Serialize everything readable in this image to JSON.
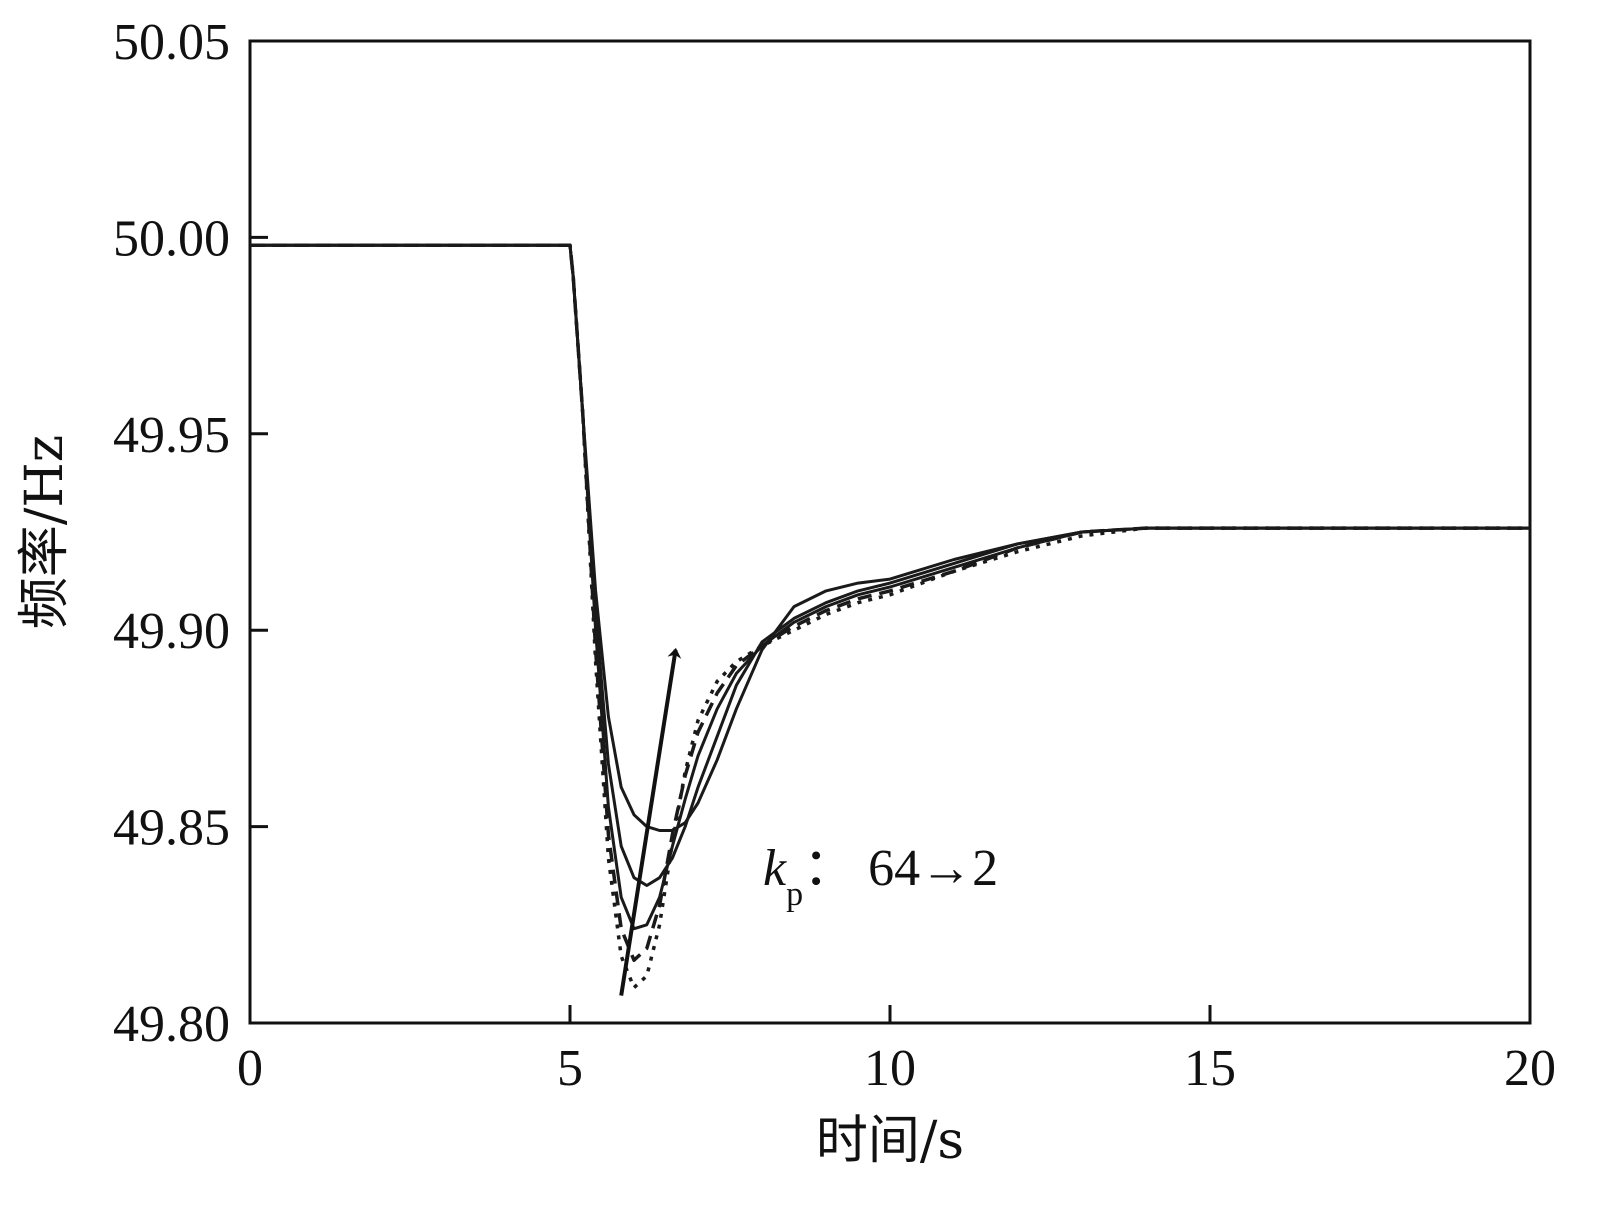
{
  "chart_data": {
    "type": "line",
    "xlabel": "时间/s",
    "ylabel": "频率/Hz",
    "xlim": [
      0,
      20
    ],
    "ylim": [
      49.8,
      50.05
    ],
    "xticks": [
      "0",
      "5",
      "10",
      "15",
      "20"
    ],
    "yticks": [
      "49.80",
      "49.85",
      "49.90",
      "49.95",
      "50.00",
      "50.05"
    ],
    "grid": false,
    "colors": {
      "line": "#1a1a1a",
      "axis": "#111111"
    },
    "annotation": {
      "k_italic": "k",
      "k_sub": "p",
      "text": "： 64→2",
      "arrow_from": [
        5.8,
        49.807
      ],
      "arrow_to": [
        6.65,
        49.895
      ]
    },
    "series": [
      {
        "style": "solid",
        "x": [
          0,
          5.0,
          5.05,
          5.2,
          5.4,
          5.6,
          5.8,
          6.0,
          6.2,
          6.4,
          6.6,
          6.8,
          7.0,
          7.3,
          7.6,
          8.0,
          8.5,
          9.0,
          9.5,
          10.0,
          11.0,
          12.0,
          13.0,
          14.0,
          15.0,
          17.0,
          20.0
        ],
        "y": [
          49.998,
          49.998,
          49.99,
          49.955,
          49.91,
          49.878,
          49.86,
          49.853,
          49.85,
          49.849,
          49.849,
          49.851,
          49.856,
          49.867,
          49.88,
          49.895,
          49.906,
          49.91,
          49.912,
          49.913,
          49.918,
          49.922,
          49.925,
          49.926,
          49.926,
          49.926,
          49.926
        ]
      },
      {
        "style": "solid",
        "x": [
          0,
          5.0,
          5.05,
          5.2,
          5.4,
          5.6,
          5.8,
          6.0,
          6.2,
          6.4,
          6.6,
          6.8,
          7.0,
          7.3,
          7.6,
          8.0,
          8.5,
          9.0,
          9.5,
          10.0,
          11.0,
          12.0,
          13.0,
          14.0,
          15.0,
          17.0,
          20.0
        ],
        "y": [
          49.998,
          49.998,
          49.99,
          49.955,
          49.905,
          49.866,
          49.845,
          49.837,
          49.835,
          49.837,
          49.842,
          49.85,
          49.86,
          49.873,
          49.886,
          49.897,
          49.903,
          49.907,
          49.91,
          49.912,
          49.917,
          49.922,
          49.925,
          49.926,
          49.926,
          49.926,
          49.926
        ]
      },
      {
        "style": "solid",
        "x": [
          0,
          5.0,
          5.05,
          5.2,
          5.4,
          5.6,
          5.8,
          6.0,
          6.2,
          6.4,
          6.6,
          6.8,
          7.0,
          7.3,
          7.6,
          8.0,
          8.5,
          9.0,
          9.5,
          10.0,
          11.0,
          12.0,
          13.0,
          14.0,
          15.0,
          17.0,
          20.0
        ],
        "y": [
          49.998,
          49.998,
          49.99,
          49.955,
          49.9,
          49.855,
          49.832,
          49.824,
          49.825,
          49.832,
          49.845,
          49.857,
          49.868,
          49.88,
          49.889,
          49.896,
          49.902,
          49.906,
          49.909,
          49.911,
          49.916,
          49.921,
          49.925,
          49.926,
          49.926,
          49.926,
          49.926
        ]
      },
      {
        "style": "dashed",
        "x": [
          0,
          5.0,
          5.05,
          5.2,
          5.4,
          5.6,
          5.8,
          6.0,
          6.2,
          6.4,
          6.6,
          6.8,
          7.0,
          7.3,
          7.6,
          8.0,
          8.5,
          9.0,
          9.5,
          10.0,
          11.0,
          12.0,
          13.0,
          14.0,
          15.0,
          17.0,
          20.0
        ],
        "y": [
          49.998,
          49.998,
          49.99,
          49.955,
          49.895,
          49.848,
          49.824,
          49.816,
          49.819,
          49.83,
          49.848,
          49.863,
          49.874,
          49.884,
          49.891,
          49.896,
          49.901,
          49.905,
          49.908,
          49.91,
          49.915,
          49.921,
          49.925,
          49.926,
          49.926,
          49.926,
          49.926
        ]
      },
      {
        "style": "dotted",
        "x": [
          0,
          5.0,
          5.05,
          5.2,
          5.4,
          5.6,
          5.8,
          6.0,
          6.2,
          6.4,
          6.6,
          6.8,
          7.0,
          7.3,
          7.6,
          8.0,
          8.5,
          9.0,
          9.5,
          10.0,
          11.0,
          12.0,
          13.0,
          14.0,
          15.0,
          17.0,
          20.0
        ],
        "y": [
          49.998,
          49.998,
          49.99,
          49.955,
          49.892,
          49.842,
          49.817,
          49.809,
          49.812,
          49.825,
          49.846,
          49.864,
          49.877,
          49.887,
          49.892,
          49.896,
          49.9,
          49.904,
          49.907,
          49.909,
          49.915,
          49.92,
          49.924,
          49.926,
          49.926,
          49.926,
          49.926
        ]
      }
    ]
  }
}
